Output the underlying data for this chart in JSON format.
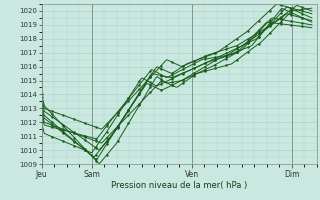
{
  "title": "Pression niveau de la mer( hPa )",
  "ylim": [
    1009,
    1020.5
  ],
  "yticks": [
    1009,
    1010,
    1011,
    1012,
    1013,
    1014,
    1015,
    1016,
    1017,
    1018,
    1019,
    1020
  ],
  "xtick_labels": [
    "Jeu",
    "Sam",
    "Ven",
    "Dim"
  ],
  "xtick_positions": [
    0.0,
    1.0,
    3.0,
    5.0
  ],
  "xlim": [
    0,
    5.5
  ],
  "background_color": "#c8e8e0",
  "grid_color": "#b0d0c8",
  "line_color": "#1a5c1a",
  "line_width": 0.7,
  "marker_size": 1.5,
  "num_points": 200,
  "x_total": 5.4,
  "lines": [
    {
      "key_x": [
        0.0,
        0.05,
        1.15,
        1.5,
        2.3,
        2.5,
        2.8,
        3.5,
        4.2,
        4.8,
        5.4
      ],
      "key_y": [
        1014.0,
        1013.2,
        1009.0,
        1010.5,
        1015.3,
        1014.8,
        1015.0,
        1016.5,
        1017.5,
        1020.2,
        1019.2
      ]
    },
    {
      "key_x": [
        0.0,
        0.05,
        1.1,
        1.4,
        2.2,
        2.6,
        3.0,
        3.6,
        4.3,
        4.9,
        5.4
      ],
      "key_y": [
        1013.2,
        1012.5,
        1009.3,
        1011.0,
        1015.5,
        1015.2,
        1015.8,
        1016.8,
        1018.0,
        1020.3,
        1019.5
      ]
    },
    {
      "key_x": [
        0.0,
        0.05,
        1.2,
        1.6,
        2.4,
        2.7,
        3.1,
        3.8,
        4.4,
        5.0,
        5.4
      ],
      "key_y": [
        1012.8,
        1012.0,
        1010.5,
        1012.0,
        1015.0,
        1014.5,
        1015.5,
        1016.2,
        1017.8,
        1020.0,
        1020.2
      ]
    },
    {
      "key_x": [
        0.0,
        0.05,
        1.15,
        1.5,
        2.3,
        2.6,
        2.9,
        3.5,
        4.1,
        4.7,
        5.4
      ],
      "key_y": [
        1013.5,
        1012.8,
        1010.0,
        1011.5,
        1016.0,
        1015.5,
        1016.2,
        1017.0,
        1018.5,
        1020.5,
        1019.8
      ]
    },
    {
      "key_x": [
        0.0,
        0.05,
        1.05,
        1.35,
        2.1,
        2.4,
        2.8,
        3.4,
        4.0,
        4.6,
        5.4
      ],
      "key_y": [
        1013.0,
        1012.3,
        1009.5,
        1010.8,
        1014.8,
        1014.3,
        1015.0,
        1016.0,
        1017.2,
        1019.5,
        1019.0
      ]
    },
    {
      "key_x": [
        0.0,
        0.05,
        1.1,
        1.4,
        2.2,
        2.5,
        3.2,
        3.7,
        4.3,
        4.9,
        5.4
      ],
      "key_y": [
        1012.5,
        1011.8,
        1010.8,
        1012.2,
        1015.8,
        1015.2,
        1016.5,
        1016.8,
        1018.2,
        1019.8,
        1019.3
      ]
    },
    {
      "key_x": [
        0.0,
        0.05,
        1.2,
        1.6,
        2.5,
        2.8,
        3.3,
        3.9,
        4.5,
        5.1,
        5.4
      ],
      "key_y": [
        1013.8,
        1013.0,
        1011.5,
        1013.0,
        1016.5,
        1016.0,
        1016.8,
        1017.5,
        1018.8,
        1020.4,
        1020.0
      ]
    },
    {
      "key_x": [
        0.0,
        0.05,
        1.0,
        1.3,
        2.0,
        2.3,
        2.7,
        3.3,
        3.9,
        4.5,
        5.4
      ],
      "key_y": [
        1012.0,
        1011.2,
        1009.8,
        1011.3,
        1015.2,
        1014.6,
        1015.3,
        1016.3,
        1017.0,
        1019.2,
        1018.8
      ]
    }
  ]
}
